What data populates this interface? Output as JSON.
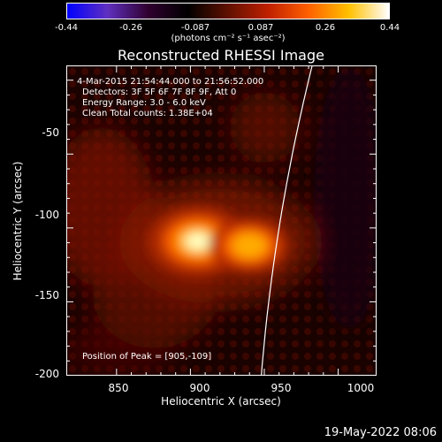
{
  "colorbar": {
    "ticks": [
      "-0.44",
      "-0.26",
      "-0.087",
      "0.087",
      "0.26",
      "0.44"
    ],
    "unit_label": "(photons cm⁻² s⁻¹ asec⁻²)",
    "colors": [
      "#0000ff",
      "#6030c0",
      "#300030",
      "#000000",
      "#601000",
      "#c02000",
      "#ff6000",
      "#ffc000",
      "#ffffff"
    ]
  },
  "plot": {
    "title": "Reconstructed RHESSI Image",
    "time_range": "4-Mar-2015 21:54:44.000 to 21:56:52.000",
    "detectors": "Detectors: 3F 5F 6F 7F 8F 9F, Att 0",
    "energy_range": "Energy Range: 3.0 - 6.0 keV",
    "clean_info": "Clean    Total counts: 1.38E+04",
    "peak_position": "Position of Peak = [905,-109]",
    "xlabel": "Heliocentric X (arcsec)",
    "ylabel": "Heliocentric Y (arcsec)",
    "xticks": [
      "850",
      "900",
      "950",
      "1000"
    ],
    "yticks": [
      "-50",
      "-100",
      "-150",
      "-200"
    ]
  },
  "footer": {
    "date": "19-May-2022 08:06"
  },
  "chart_data": {
    "type": "heatmap",
    "title": "Reconstructed RHESSI Image",
    "xlabel": "Heliocentric X (arcsec)",
    "ylabel": "Heliocentric Y (arcsec)",
    "xlim": [
      816,
      1026
    ],
    "ylim": [
      -200,
      10
    ],
    "peak": [
      905,
      -109
    ],
    "sources": [
      {
        "x": 905,
        "y": -109,
        "intensity": 0.44
      },
      {
        "x": 940,
        "y": -112,
        "intensity": 0.33
      }
    ],
    "limb_x_at_ymin": 948,
    "colorbar_range": [
      -0.44,
      0.44
    ]
  }
}
